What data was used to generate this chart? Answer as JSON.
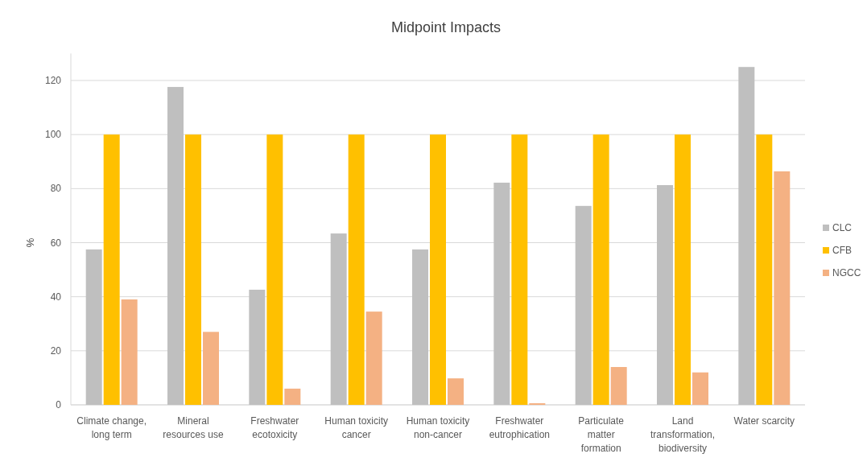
{
  "chart_data": {
    "type": "bar",
    "title": "Midpoint Impacts",
    "ylabel": "%",
    "categories": [
      "Climate change,\nlong term",
      "Mineral\nresources use",
      "Freshwater\necotoxicity",
      "Human toxicity\ncancer",
      "Human toxicity\nnon-cancer",
      "Freshwater\neutrophication",
      "Particulate\nmatter\nformation",
      "Land\ntransformation,\nbiodiversity",
      "Water scarcity"
    ],
    "series": [
      {
        "name": "CLC",
        "color": "#bfbfbf",
        "values": [
          57.5,
          117.6,
          42.6,
          63.4,
          57.5,
          82.2,
          73.6,
          81.3,
          125
        ]
      },
      {
        "name": "CFB",
        "color": "#ffc000",
        "values": [
          100,
          100,
          100,
          100,
          100,
          100,
          100,
          100,
          100
        ]
      },
      {
        "name": "NGCC",
        "color": "#f4b183",
        "values": [
          39,
          27,
          6,
          34.5,
          9.8,
          0.6,
          14,
          12,
          86.4
        ]
      }
    ],
    "ylim": [
      0,
      130
    ],
    "yticks": [
      0,
      20,
      40,
      60,
      80,
      100,
      120
    ],
    "grid": "y",
    "legend": "right"
  }
}
